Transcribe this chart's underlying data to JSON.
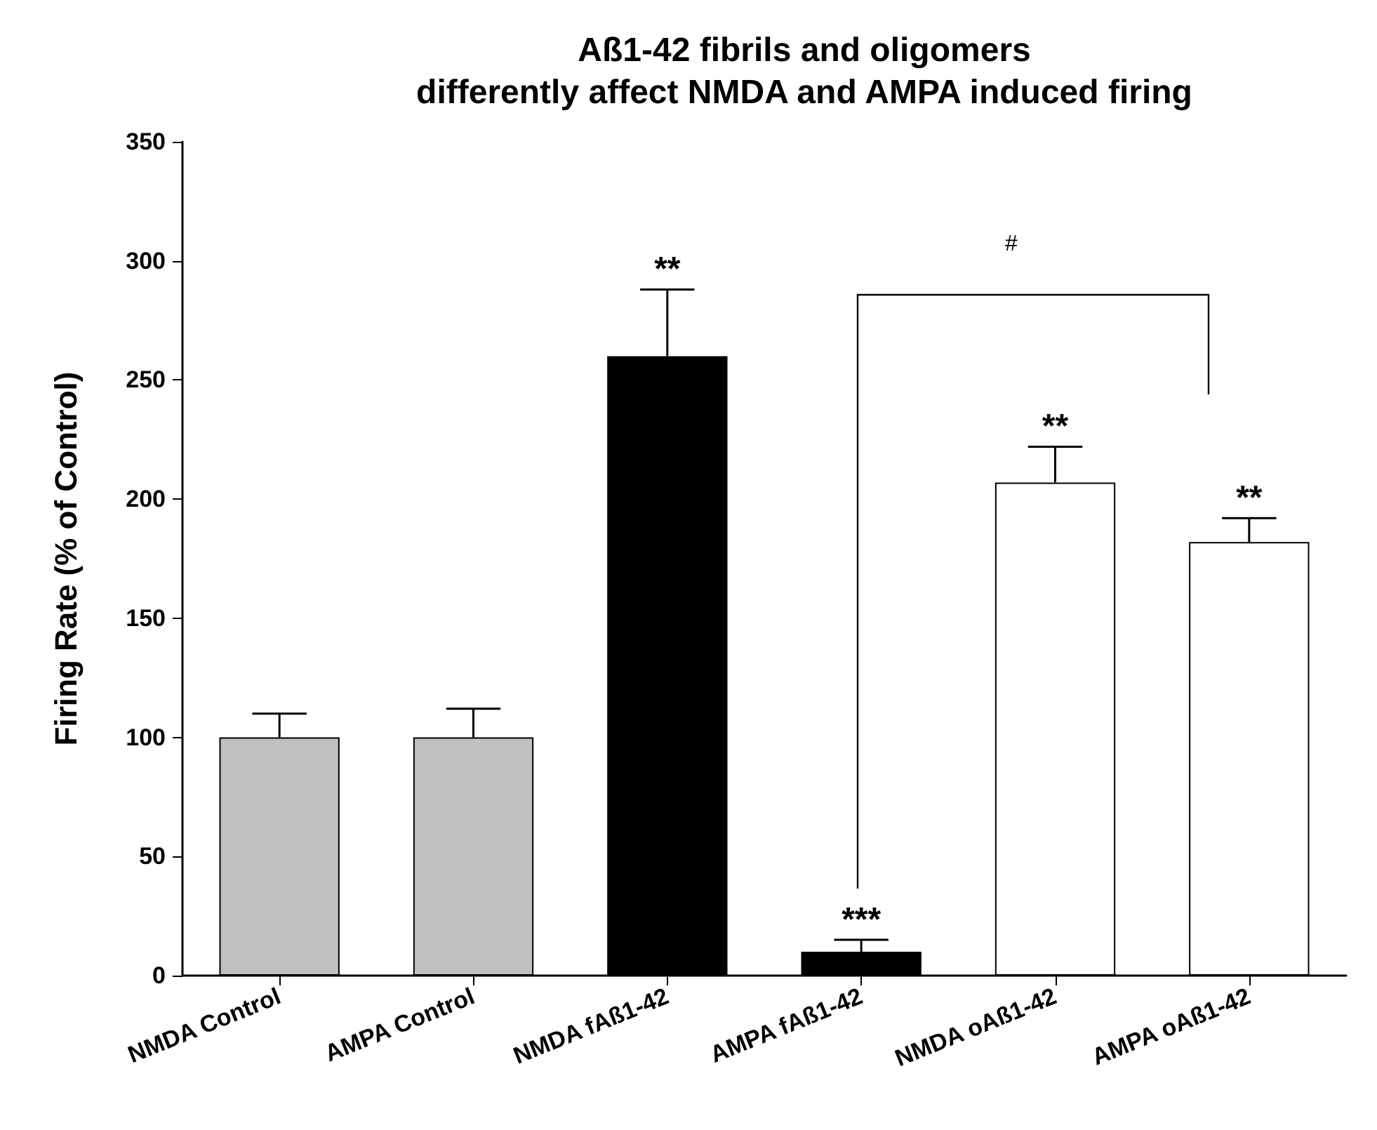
{
  "chart_data": {
    "type": "bar",
    "title": "Aß1-42 fibrils and oligomers\ndifferently affect NMDA and AMPA induced firing",
    "ylabel": "Firing Rate (% of Control)",
    "categories": [
      "NMDA Control",
      "AMPA Control",
      "NMDA fAß1-42",
      "AMPA fAß1-42",
      "NMDA oAß1-42",
      "AMPA oAß1-42"
    ],
    "values": [
      100,
      100,
      260,
      10,
      207,
      182
    ],
    "colors": [
      "#c0c0c0",
      "#c0c0c0",
      "#000000",
      "#000000",
      "#ffffff",
      "#ffffff"
    ],
    "errors": [
      [
        100,
        110
      ],
      [
        100,
        112
      ],
      [
        260,
        288
      ],
      [
        10,
        15
      ],
      [
        207,
        222
      ],
      [
        182,
        192
      ]
    ],
    "ylim": [
      0,
      350
    ],
    "yticks": [
      0,
      50,
      100,
      150,
      200,
      250,
      300,
      350
    ],
    "grid": false,
    "annotations": [
      {
        "text": "**",
        "x": "NMDA fAß1-42",
        "y": 288
      },
      {
        "text": "***",
        "x": "AMPA fAß1-42",
        "y": 15
      },
      {
        "text": "**",
        "x": "NMDA oAß1-42",
        "y": 222
      },
      {
        "text": "**",
        "x": "AMPA oAß1-42",
        "y": 192
      },
      "#"
    ]
  }
}
